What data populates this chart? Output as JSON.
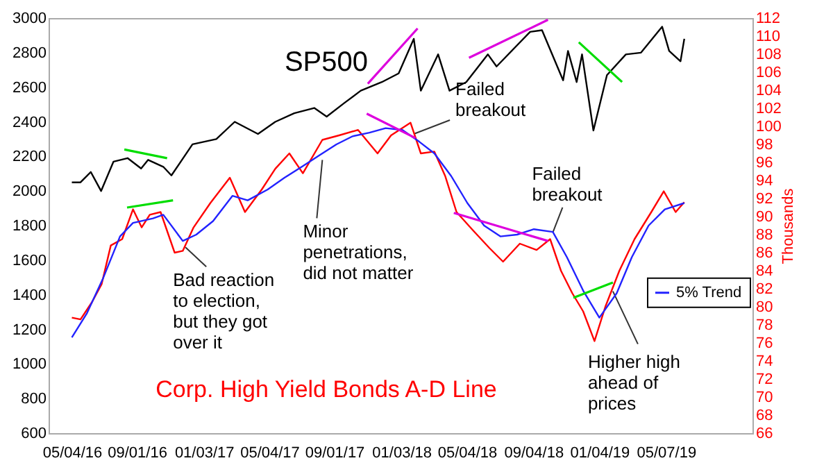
{
  "chart_data": {
    "type": "line",
    "y2label": "Thousands",
    "xlim": [
      "2016-03-22",
      "2019-10-14"
    ],
    "xticks": [
      {
        "value": "2016-05-04",
        "label": "05/04/16"
      },
      {
        "value": "2016-09-01",
        "label": "09/01/16"
      },
      {
        "value": "2017-01-03",
        "label": "01/03/17"
      },
      {
        "value": "2017-05-04",
        "label": "05/04/17"
      },
      {
        "value": "2017-09-01",
        "label": "09/01/17"
      },
      {
        "value": "2018-01-03",
        "label": "01/03/18"
      },
      {
        "value": "2018-05-04",
        "label": "05/04/18"
      },
      {
        "value": "2018-09-04",
        "label": "09/04/18"
      },
      {
        "value": "2019-01-04",
        "label": "01/04/19"
      },
      {
        "value": "2019-05-07",
        "label": "05/07/19"
      }
    ],
    "ylim": [
      600,
      3000
    ],
    "yticks": [
      600,
      800,
      1000,
      1200,
      1400,
      1600,
      1800,
      2000,
      2200,
      2400,
      2600,
      2800,
      3000
    ],
    "y2lim": [
      66,
      112
    ],
    "y2ticks": [
      66,
      68,
      70,
      72,
      74,
      76,
      78,
      80,
      82,
      84,
      86,
      88,
      90,
      92,
      94,
      96,
      98,
      100,
      102,
      104,
      106,
      108,
      110,
      112
    ],
    "grid": false,
    "legend": "right",
    "marker": "none",
    "line_style": "solid",
    "series": [
      {
        "color": "#000000",
        "x": [
          "2016-05-04",
          "2016-05-20",
          "2016-06-08",
          "2016-06-27",
          "2016-07-20",
          "2016-08-15",
          "2016-09-09",
          "2016-09-22",
          "2016-10-20",
          "2016-11-04",
          "2016-12-13",
          "2017-01-26",
          "2017-03-01",
          "2017-04-13",
          "2017-05-15",
          "2017-06-19",
          "2017-07-26",
          "2017-08-18",
          "2017-09-20",
          "2017-10-20",
          "2017-11-28",
          "2017-12-29",
          "2018-01-26",
          "2018-02-08",
          "2018-03-12",
          "2018-04-02",
          "2018-05-03",
          "2018-06-12",
          "2018-06-28",
          "2018-08-29",
          "2018-09-20",
          "2018-10-29",
          "2018-11-07",
          "2018-11-23",
          "2018-12-03",
          "2018-12-24",
          "2019-01-18",
          "2019-02-22",
          "2019-03-22",
          "2019-04-30",
          "2019-05-13",
          "2019-06-03",
          "2019-06-10"
        ],
        "values": [
          2050,
          2050,
          2110,
          2000,
          2170,
          2190,
          2130,
          2180,
          2140,
          2090,
          2270,
          2300,
          2400,
          2330,
          2400,
          2450,
          2480,
          2430,
          2510,
          2580,
          2630,
          2680,
          2880,
          2580,
          2790,
          2580,
          2630,
          2790,
          2720,
          2920,
          2930,
          2640,
          2810,
          2630,
          2790,
          2350,
          2670,
          2790,
          2800,
          2950,
          2810,
          2750,
          2880
        ]
      },
      {
        "color": "#ff0000",
        "axis": "y2",
        "x": [
          "2016-05-04",
          "2016-05-20",
          "2016-06-10",
          "2016-06-28",
          "2016-07-15",
          "2016-08-05",
          "2016-08-25",
          "2016-09-10",
          "2016-09-25",
          "2016-10-15",
          "2016-11-10",
          "2016-11-25",
          "2016-12-15",
          "2017-01-15",
          "2017-02-20",
          "2017-03-20",
          "2017-04-20",
          "2017-05-15",
          "2017-06-10",
          "2017-07-05",
          "2017-08-10",
          "2017-09-10",
          "2017-10-15",
          "2017-11-20",
          "2017-12-15",
          "2018-01-20",
          "2018-02-08",
          "2018-03-05",
          "2018-03-25",
          "2018-04-15",
          "2018-05-15",
          "2018-06-15",
          "2018-07-10",
          "2018-08-10",
          "2018-09-10",
          "2018-10-05",
          "2018-10-25",
          "2018-11-15",
          "2018-12-05",
          "2018-12-26",
          "2019-01-15",
          "2019-02-10",
          "2019-03-10",
          "2019-04-10",
          "2019-05-03",
          "2019-05-25",
          "2019-06-10"
        ],
        "values": [
          78.8,
          78.6,
          80.5,
          82.5,
          86.8,
          87.5,
          90.8,
          88.8,
          90.2,
          90.5,
          86.0,
          86.2,
          88.8,
          91.5,
          94.3,
          90.5,
          93.0,
          95.3,
          97.0,
          94.8,
          98.5,
          99.0,
          99.6,
          97.0,
          99.0,
          100.4,
          97.0,
          97.2,
          94.5,
          90.5,
          88.5,
          86.5,
          85.0,
          87.0,
          86.3,
          87.5,
          84.0,
          81.5,
          79.5,
          76.2,
          80.0,
          84.0,
          87.5,
          90.5,
          92.8,
          90.5,
          91.6
        ]
      },
      {
        "name": "5% Trend",
        "color": "#2222ff",
        "axis": "y2",
        "x": [
          "2016-05-04",
          "2016-06-01",
          "2016-07-01",
          "2016-08-01",
          "2016-08-25",
          "2016-10-01",
          "2016-10-20",
          "2016-11-25",
          "2016-12-20",
          "2017-01-20",
          "2017-02-25",
          "2017-03-25",
          "2017-05-01",
          "2017-06-01",
          "2017-07-05",
          "2017-08-05",
          "2017-09-05",
          "2017-10-05",
          "2017-11-05",
          "2017-12-05",
          "2018-01-05",
          "2018-02-05",
          "2018-03-05",
          "2018-04-05",
          "2018-05-05",
          "2018-06-05",
          "2018-07-05",
          "2018-08-05",
          "2018-09-05",
          "2018-10-10",
          "2018-11-05",
          "2018-12-05",
          "2019-01-04",
          "2019-02-05",
          "2019-03-05",
          "2019-04-05",
          "2019-05-05",
          "2019-06-10"
        ],
        "values": [
          76.6,
          79.3,
          83.2,
          87.8,
          89.3,
          89.8,
          90.2,
          87.3,
          88.0,
          89.5,
          92.3,
          91.8,
          93.0,
          94.3,
          95.6,
          96.8,
          98.0,
          98.9,
          99.3,
          99.8,
          99.6,
          98.3,
          97.0,
          94.5,
          91.5,
          89.0,
          87.8,
          88.0,
          88.6,
          88.3,
          85.5,
          81.8,
          78.8,
          81.5,
          85.5,
          89.0,
          90.8,
          91.5
        ]
      },
      {
        "color": "#00dd00",
        "x": [
          "2016-08-09",
          "2016-10-27"
        ],
        "values": [
          2240,
          2190
        ]
      },
      {
        "color": "#00dd00",
        "axis": "y2",
        "x": [
          "2016-08-14",
          "2016-11-07"
        ],
        "values": [
          91.0,
          91.8
        ]
      },
      {
        "color": "#dd00dd",
        "x": [
          "2017-11-02",
          "2018-02-02"
        ],
        "values": [
          2620,
          2940
        ]
      },
      {
        "color": "#dd00dd",
        "axis": "y2",
        "x": [
          "2017-10-31",
          "2018-01-29"
        ],
        "values": [
          101.4,
          98.7
        ]
      },
      {
        "color": "#dd00dd",
        "x": [
          "2018-05-08",
          "2018-10-01"
        ],
        "values": [
          2770,
          2990
        ]
      },
      {
        "color": "#dd00dd",
        "axis": "y2",
        "x": [
          "2018-04-10",
          "2018-10-01"
        ],
        "values": [
          90.4,
          87.3
        ]
      },
      {
        "color": "#00dd00",
        "x": [
          "2018-11-27",
          "2019-02-15"
        ],
        "values": [
          2860,
          2630
        ]
      },
      {
        "color": "#00dd00",
        "axis": "y2",
        "x": [
          "2018-11-17",
          "2019-01-29"
        ],
        "values": [
          81.0,
          82.7
        ]
      }
    ],
    "annotations": [
      "SP500",
      "Corp. High Yield Bonds A-D Line",
      {
        "text": "Failed\nbreakout",
        "x": "2018-01-26",
        "y": 2330
      },
      {
        "text": "Failed\nbreakout",
        "x": "2018-10-10",
        "y": 1760
      },
      {
        "text": "Minor\npenetrations,\ndid not matter",
        "x": "2017-08-10",
        "y": 2180
      },
      {
        "text": "Bad reaction\nto election,\nbut they got\nover it",
        "x": "2016-11-30",
        "y": 1675
      },
      {
        "text": "Higher high\nahead of\nprices",
        "x": "2019-01-29",
        "y": 1420
      }
    ]
  }
}
